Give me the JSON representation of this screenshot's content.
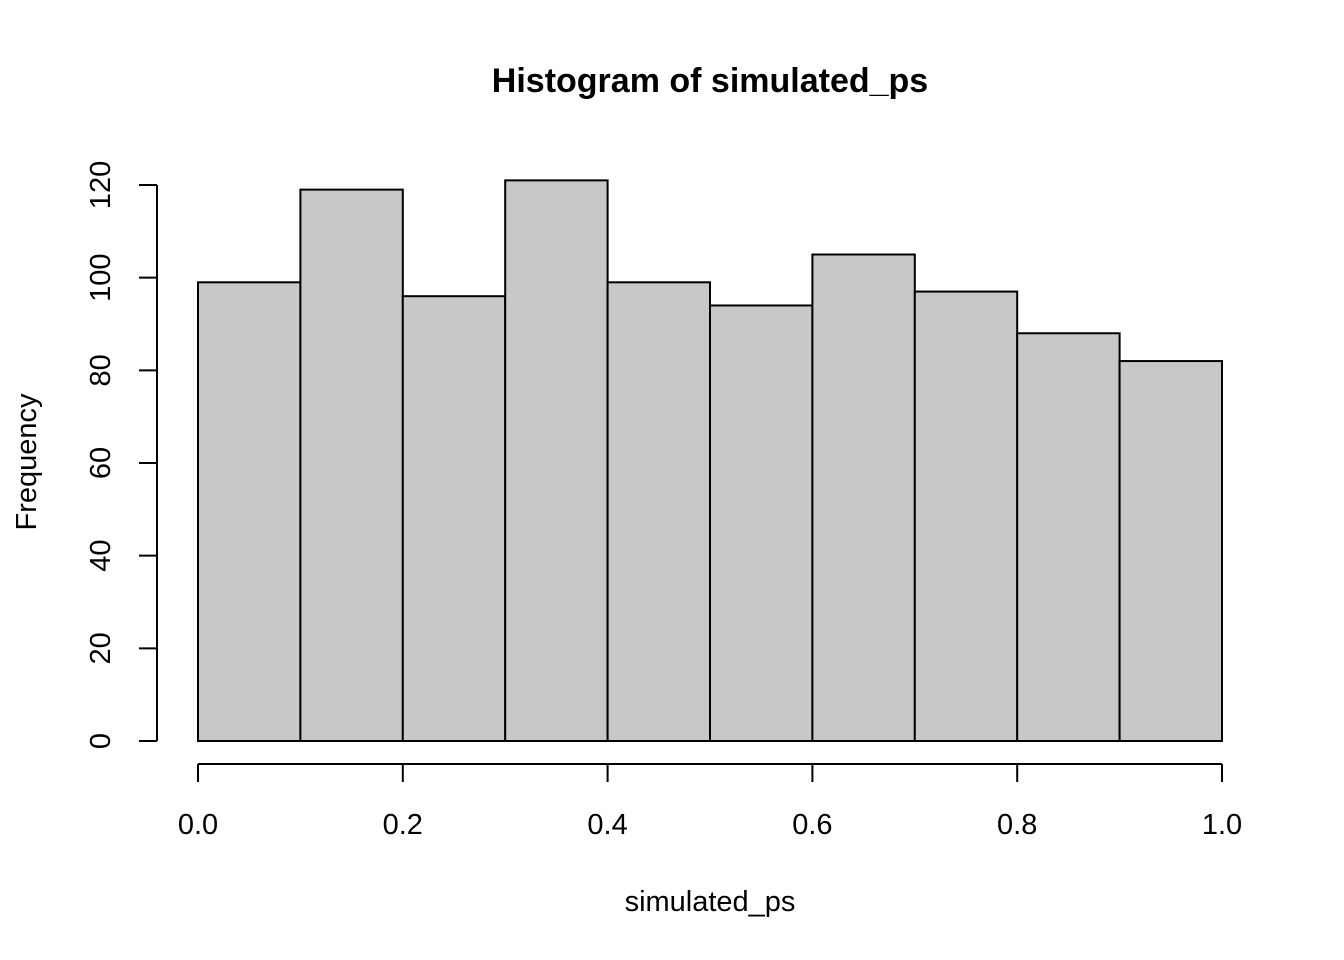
{
  "chart_data": {
    "type": "bar",
    "title": "Histogram of simulated_ps",
    "xlabel": "simulated_ps",
    "ylabel": "Frequency",
    "bin_edges": [
      0.0,
      0.1,
      0.2,
      0.3,
      0.4,
      0.5,
      0.6,
      0.7,
      0.8,
      0.9,
      1.0
    ],
    "values": [
      99,
      119,
      96,
      121,
      99,
      94,
      105,
      97,
      88,
      82
    ],
    "xlim": [
      0.0,
      1.0
    ],
    "ylim": [
      0,
      120
    ],
    "x_ticks": [
      "0.0",
      "0.2",
      "0.4",
      "0.6",
      "0.8",
      "1.0"
    ],
    "y_ticks": [
      "0",
      "20",
      "40",
      "60",
      "80",
      "100",
      "120"
    ],
    "bar_fill": "#c8c8c8",
    "bar_stroke": "#000000",
    "grid": false
  }
}
